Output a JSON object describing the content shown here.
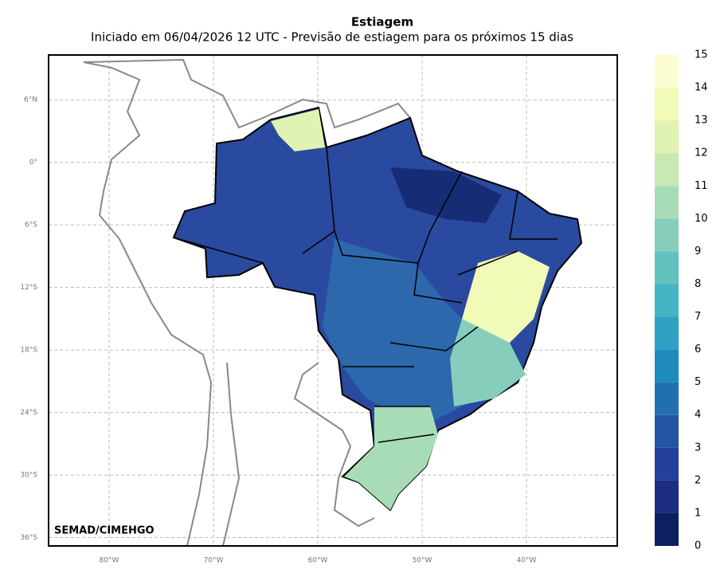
{
  "title": "Estiagem",
  "subtitle": "Iniciado em 06/04/2026 12 UTC - Previsão de estiagem para os próximos 15 dias",
  "credit": "SEMAD/CIMEHGO",
  "map": {
    "xlim": [
      -85.8,
      -31.3
    ],
    "ylim": [
      -36.8,
      10.3
    ],
    "grid": true,
    "xticks": [
      {
        "value": -80,
        "label": "80°W"
      },
      {
        "value": -70,
        "label": "70°W"
      },
      {
        "value": -60,
        "label": "60°W"
      },
      {
        "value": -50,
        "label": "50°W"
      },
      {
        "value": -40,
        "label": "40°W"
      }
    ],
    "yticks": [
      {
        "value": 6,
        "label": "6°N"
      },
      {
        "value": 0,
        "label": "0°"
      },
      {
        "value": -6,
        "label": "6°S"
      },
      {
        "value": -12,
        "label": "12°S"
      },
      {
        "value": -18,
        "label": "18°S"
      },
      {
        "value": -24,
        "label": "24°S"
      },
      {
        "value": -30,
        "label": "30°S"
      },
      {
        "value": -36,
        "label": "36°S"
      }
    ]
  },
  "colorbar": {
    "ticks": [
      0,
      1,
      2,
      3,
      4,
      5,
      6,
      7,
      8,
      9,
      10,
      11,
      12,
      13,
      14,
      15
    ],
    "colors": [
      "#0c1f5f",
      "#1c2d83",
      "#23409a",
      "#2355a4",
      "#2070b1",
      "#1f8bbf",
      "#2da2c2",
      "#44b5c4",
      "#62c2bf",
      "#86cebb",
      "#a8dcb6",
      "#c8e9b4",
      "#e0f3b2",
      "#f2fab8",
      "#fbfdd0"
    ]
  }
}
